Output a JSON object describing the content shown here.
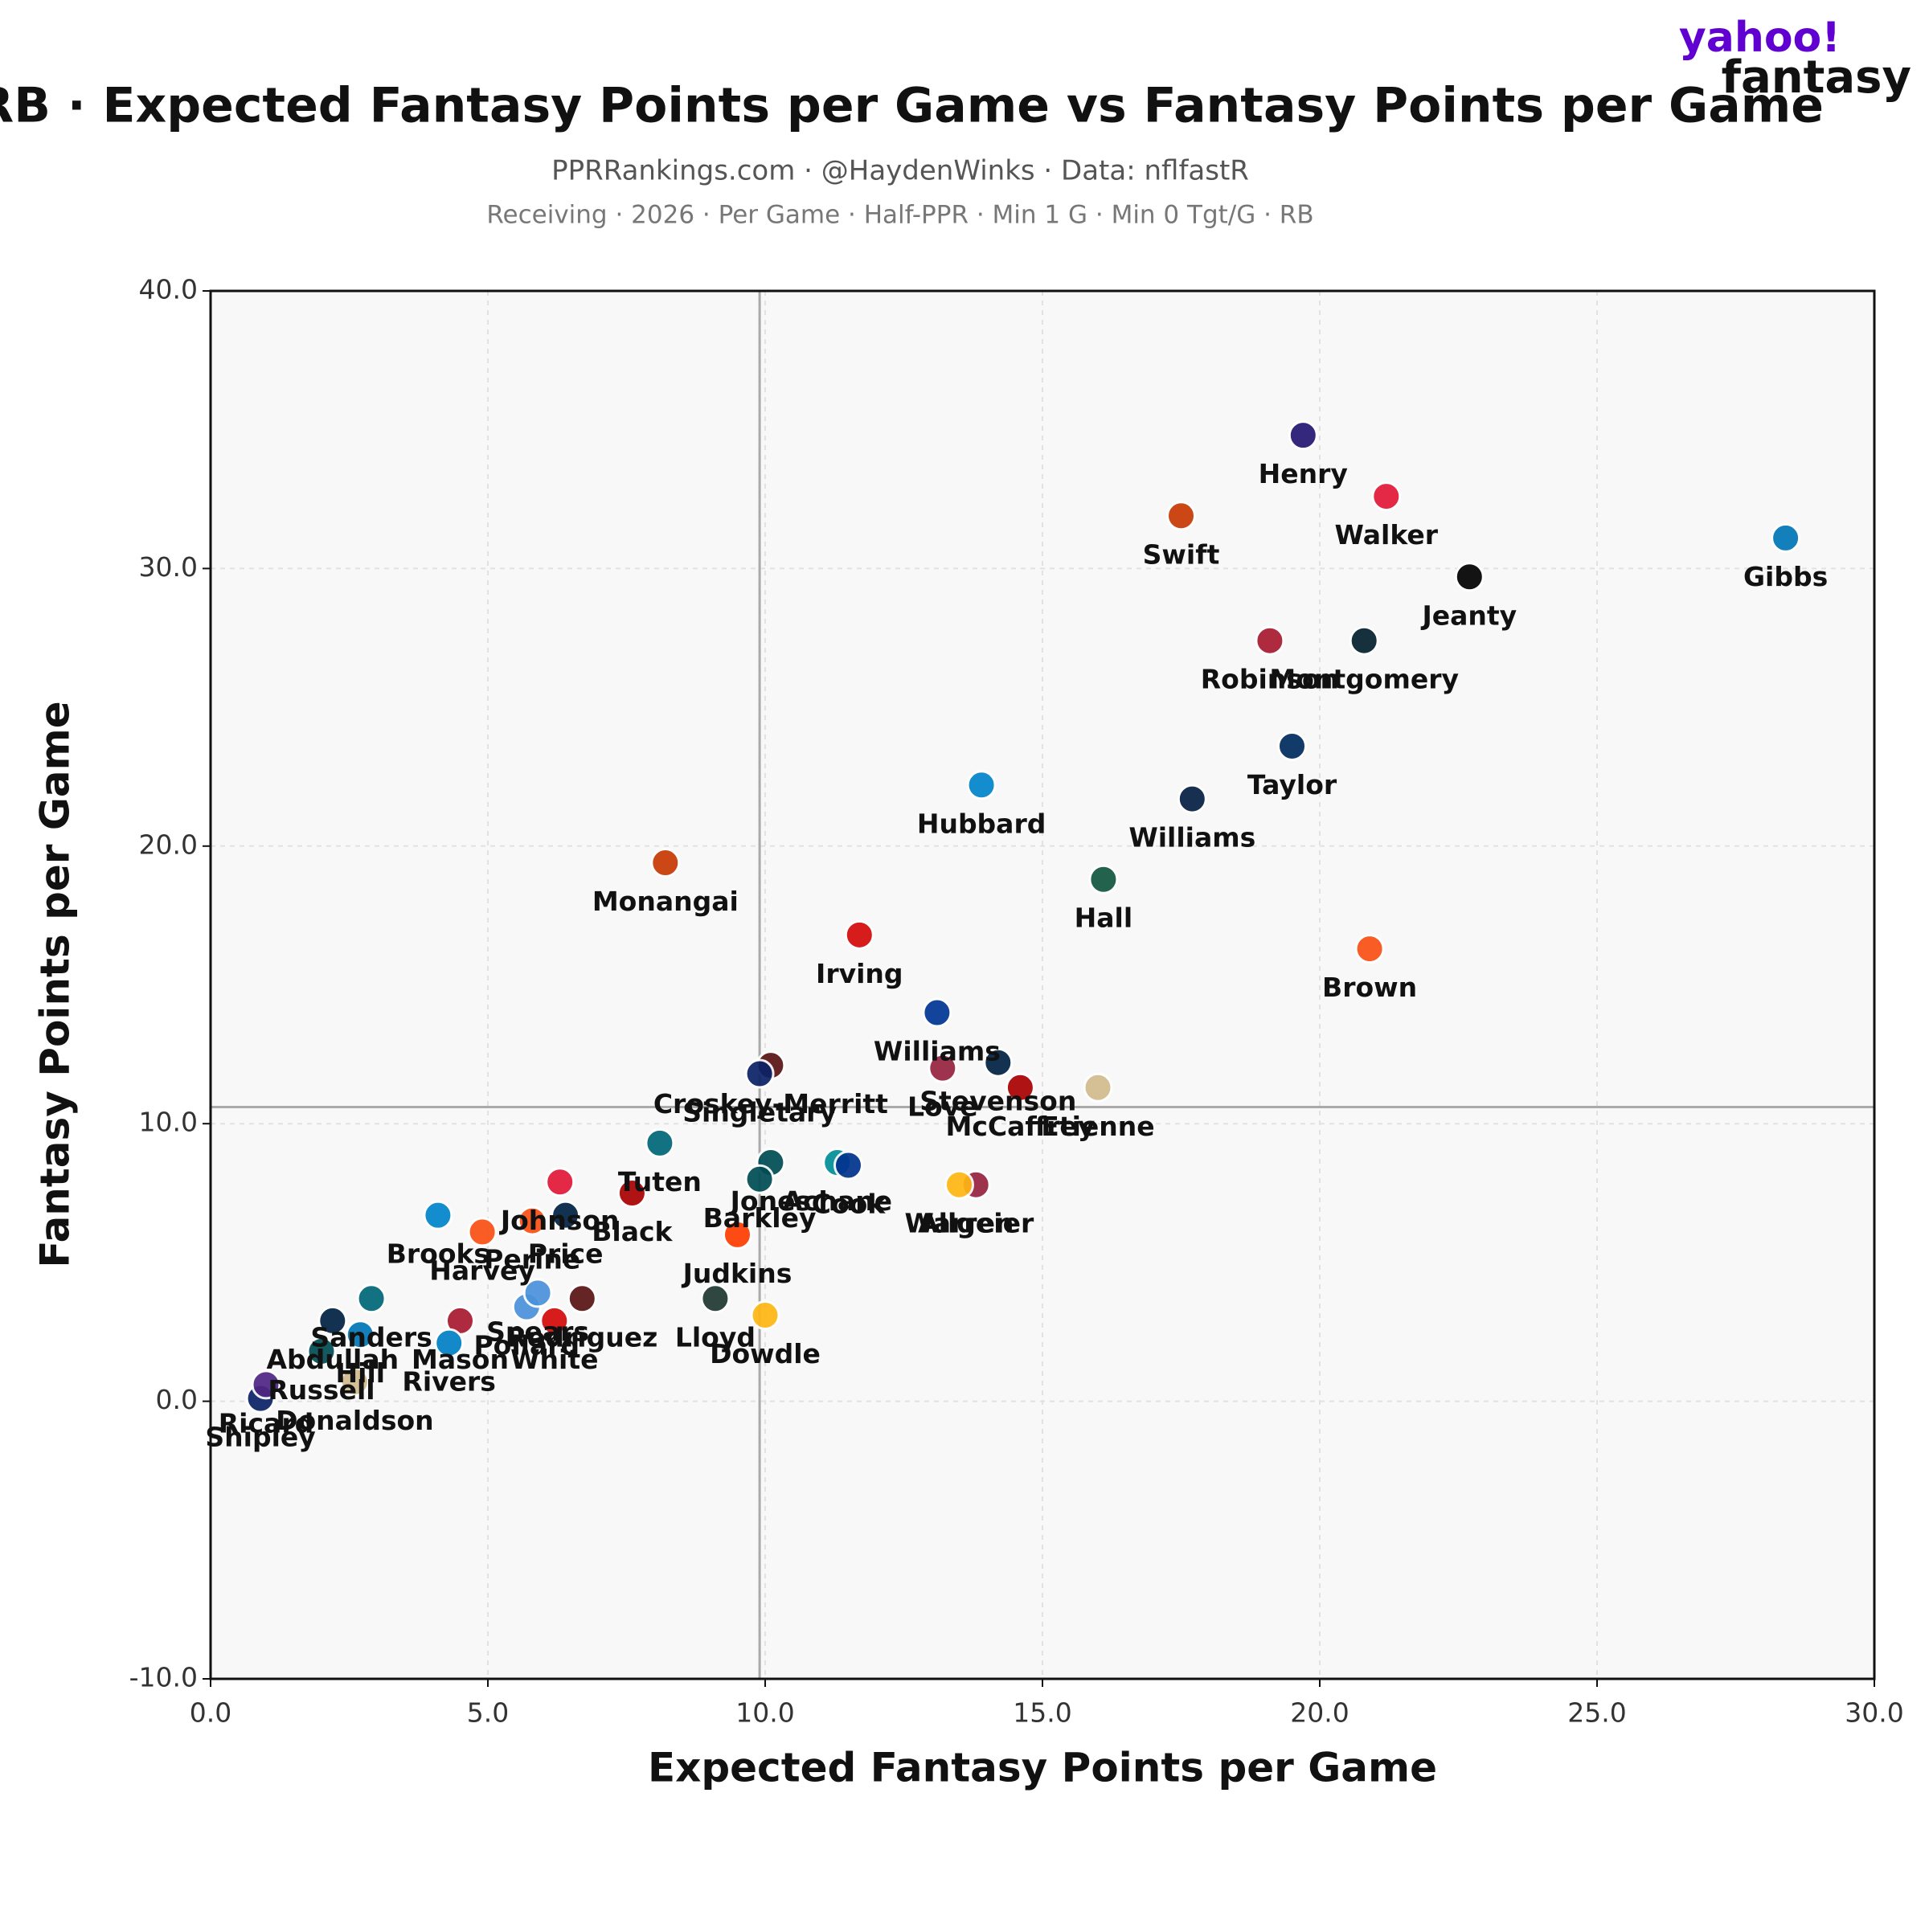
{
  "chart_data": {
    "type": "scatter",
    "title": "RB · Expected Fantasy Points per Game vs Fantasy Points per Game",
    "subtitle": "PPRRankings.com · @HaydenWinks · Data: nflfastR",
    "subtitle2": "Receiving · 2026 · Per Game · Half-PPR · Min 1 G · Min 0 Tgt/G · RB",
    "brand": {
      "line1": "yahoo!",
      "line2": "fantasy"
    },
    "x_label": "Expected Fantasy Points per Game",
    "y_label": "Fantasy Points per Game",
    "xlim": [
      0,
      30
    ],
    "ylim": [
      -10,
      40
    ],
    "xticks": [
      {
        "value": 0,
        "label": "0.0"
      },
      {
        "value": 5,
        "label": "5.0"
      },
      {
        "value": 10,
        "label": "10.0"
      },
      {
        "value": 15,
        "label": "15.0"
      },
      {
        "value": 20,
        "label": "20.0"
      },
      {
        "value": 25,
        "label": "25.0"
      },
      {
        "value": 30,
        "label": "30.0"
      }
    ],
    "yticks": [
      {
        "value": -10,
        "label": "-10.0"
      },
      {
        "value": 0,
        "label": "0.0"
      },
      {
        "value": 10,
        "label": "10.0"
      },
      {
        "value": 20,
        "label": "20.0"
      },
      {
        "value": 30,
        "label": "30.0"
      },
      {
        "value": 40,
        "label": "40.0"
      }
    ],
    "grid": true,
    "reference_lines": {
      "x": 9.9,
      "y": 10.6
    },
    "labels": [
      "Henry",
      "Walker",
      "Swift",
      "Gibbs",
      "Jeanty",
      "Robinson",
      "Montgomery",
      "Taylor",
      "Hubbard",
      "Williams",
      "Monangai",
      "Hall",
      "Irving",
      "Brown",
      "Williams",
      "Croskey-Merritt",
      "Singletary",
      "Love",
      "Stevenson",
      "McCaffrey",
      "Etienne",
      "Tuten",
      "Jones",
      "Achane",
      "Cook",
      "Allgeier",
      "Warren",
      "Black",
      "Barkley",
      "Judkins",
      "Lloyd",
      "Dowdle",
      "Johnson",
      "Brooks",
      "Perine",
      "Price",
      "Harvey",
      "Sanders",
      "Mason",
      "Pollard",
      "Spears",
      "Rodriguez",
      "White",
      "Abdullah",
      "Hill",
      "Russell",
      "Rivers",
      "Shipley",
      "Ricard",
      "Donaldson"
    ],
    "x": [
      19.7,
      21.2,
      17.5,
      28.4,
      22.7,
      19.1,
      20.8,
      19.5,
      13.9,
      17.7,
      8.2,
      16.1,
      11.7,
      20.9,
      13.1,
      10.1,
      9.9,
      13.2,
      14.2,
      14.6,
      16.0,
      8.1,
      10.1,
      11.3,
      11.5,
      13.8,
      13.5,
      7.6,
      9.9,
      9.5,
      9.1,
      10.0,
      6.3,
      4.1,
      5.8,
      6.4,
      4.9,
      2.9,
      4.5,
      5.7,
      5.9,
      6.7,
      6.2,
      2.2,
      2.7,
      2.0,
      4.3,
      0.9,
      1.0,
      2.6
    ],
    "y": [
      34.8,
      32.6,
      31.9,
      31.1,
      29.7,
      27.4,
      27.4,
      23.6,
      22.2,
      21.7,
      19.4,
      18.8,
      16.8,
      16.3,
      14.0,
      12.1,
      11.8,
      12.0,
      12.2,
      11.3,
      11.3,
      9.3,
      8.6,
      8.6,
      8.5,
      7.8,
      7.8,
      7.5,
      8.0,
      6.0,
      3.7,
      3.1,
      7.9,
      6.7,
      6.5,
      6.7,
      6.1,
      3.7,
      2.9,
      3.4,
      3.9,
      3.7,
      2.9,
      2.9,
      2.4,
      1.8,
      2.1,
      0.1,
      0.6,
      0.7
    ],
    "colors": [
      "#241773",
      "#E31837",
      "#C83803",
      "#0076B6",
      "#000000",
      "#A71930",
      "#03202F",
      "#002C5F",
      "#0085CA",
      "#041E42",
      "#C83803",
      "#125740",
      "#D50A0A",
      "#FB4F14",
      "#003594",
      "#5A1414",
      "#0B2265",
      "#97233F",
      "#002244",
      "#AA0000",
      "#D3BC8D",
      "#006778",
      "#004C54",
      "#008E97",
      "#00338D",
      "#97233F",
      "#FFB612",
      "#AA0000",
      "#004C54",
      "#FF3C00",
      "#203731",
      "#FFB612",
      "#E31837",
      "#0085CA",
      "#FB4F14",
      "#002244",
      "#FB4F14",
      "#006778",
      "#A71930",
      "#4B92DB",
      "#4B92DB",
      "#5A1414",
      "#D50A0A",
      "#002244",
      "#0076B6",
      "#004C54",
      "#0080C6",
      "#0B2265",
      "#4F2683",
      "#D3BC8D"
    ]
  }
}
